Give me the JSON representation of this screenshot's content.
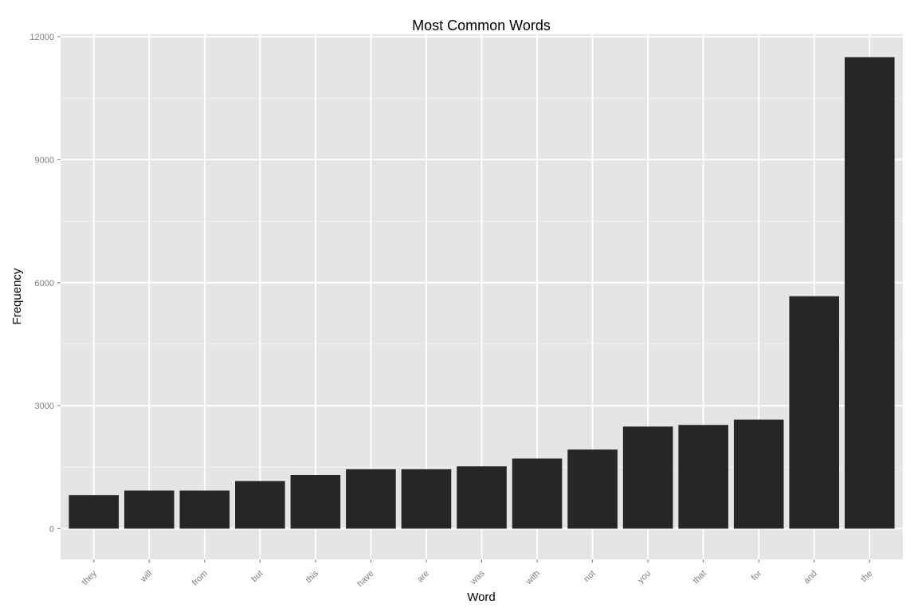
{
  "chart_data": {
    "type": "bar",
    "title": "Most Common Words",
    "xlabel": "Word",
    "ylabel": "Frequency",
    "categories": [
      "they",
      "will",
      "from",
      "but",
      "this",
      "have",
      "are",
      "was",
      "with",
      "not",
      "you",
      "that",
      "for",
      "and",
      "the"
    ],
    "values": [
      820,
      930,
      930,
      1160,
      1310,
      1450,
      1450,
      1520,
      1710,
      1930,
      2490,
      2530,
      2660,
      5670,
      11500
    ],
    "yticks": [
      0,
      3000,
      6000,
      9000,
      12000
    ],
    "ylim": [
      -750,
      12060
    ],
    "grid": true,
    "colors": {
      "panel": "#e5e5e5",
      "grid_major": "#ffffff",
      "grid_minor": "#f2f2f2",
      "bar": "#262626"
    }
  }
}
